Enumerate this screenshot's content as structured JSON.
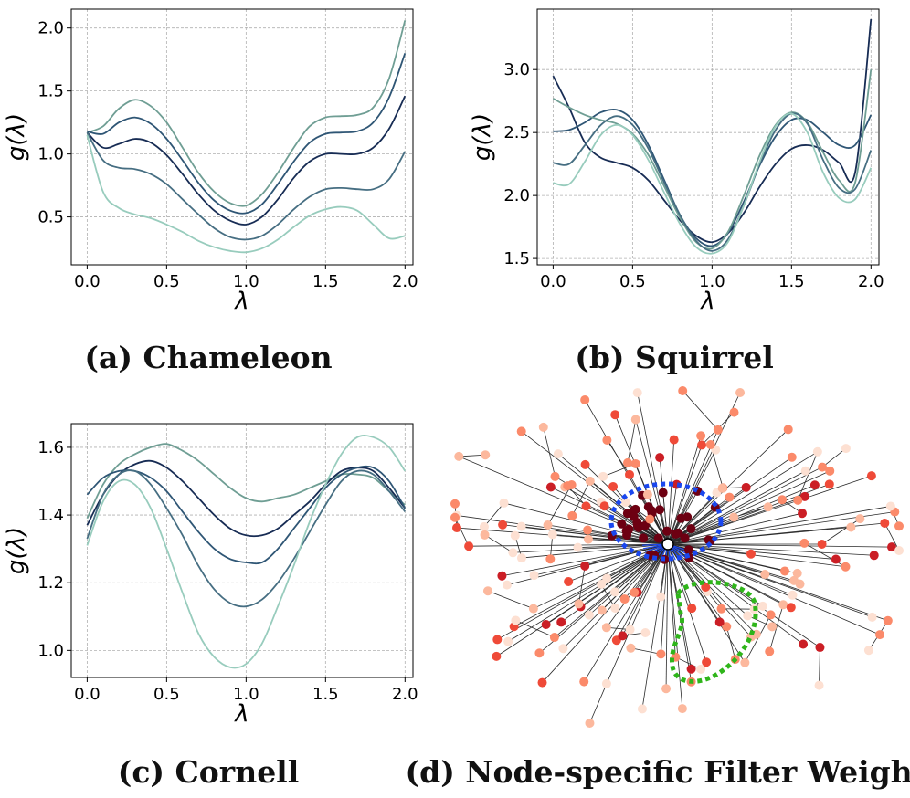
{
  "captions": {
    "a": "(a) Chameleon",
    "b": "(b) Squirrel",
    "c": "(c) Cornell",
    "d": "(d) Node-specific Filter Weights"
  },
  "chart_data": [
    {
      "type": "line",
      "xlabel": "λ",
      "ylabel": "g(λ)",
      "xlim": [
        -0.1,
        2.05
      ],
      "ylim": [
        0.12,
        2.15
      ],
      "xticks": [
        "0.0",
        "0.5",
        "1.0",
        "1.5",
        "2.0"
      ],
      "yticks": [
        "0.5",
        "1.0",
        "1.5",
        "2.0"
      ],
      "grid": true,
      "x": [
        0,
        0.1,
        0.2,
        0.3,
        0.4,
        0.5,
        0.6,
        0.7,
        0.8,
        0.9,
        1.0,
        1.1,
        1.2,
        1.3,
        1.4,
        1.5,
        1.6,
        1.7,
        1.8,
        1.9,
        2.0
      ],
      "series": [
        {
          "color": "#6f9e94",
          "values": [
            1.17,
            1.22,
            1.36,
            1.43,
            1.38,
            1.25,
            1.05,
            0.85,
            0.7,
            0.61,
            0.59,
            0.68,
            0.85,
            1.05,
            1.22,
            1.29,
            1.3,
            1.31,
            1.37,
            1.6,
            2.06
          ]
        },
        {
          "color": "#2f5675",
          "values": [
            1.18,
            1.16,
            1.25,
            1.29,
            1.24,
            1.12,
            0.95,
            0.77,
            0.63,
            0.55,
            0.53,
            0.6,
            0.76,
            0.94,
            1.09,
            1.16,
            1.17,
            1.18,
            1.25,
            1.45,
            1.8
          ]
        },
        {
          "color": "#172c54",
          "values": [
            1.17,
            1.05,
            1.08,
            1.12,
            1.09,
            0.99,
            0.84,
            0.68,
            0.55,
            0.47,
            0.44,
            0.5,
            0.64,
            0.81,
            0.94,
            1.0,
            1.0,
            1.0,
            1.05,
            1.2,
            1.46
          ]
        },
        {
          "color": "#466e82",
          "values": [
            1.17,
            0.95,
            0.89,
            0.88,
            0.84,
            0.76,
            0.64,
            0.52,
            0.41,
            0.34,
            0.32,
            0.35,
            0.44,
            0.56,
            0.66,
            0.72,
            0.73,
            0.72,
            0.72,
            0.8,
            1.02
          ]
        },
        {
          "color": "#98ccbd",
          "values": [
            1.15,
            0.7,
            0.57,
            0.52,
            0.49,
            0.44,
            0.38,
            0.31,
            0.26,
            0.23,
            0.22,
            0.25,
            0.32,
            0.42,
            0.51,
            0.56,
            0.58,
            0.55,
            0.44,
            0.33,
            0.35
          ]
        }
      ]
    },
    {
      "type": "line",
      "xlabel": "λ",
      "ylabel": "g(λ)",
      "xlim": [
        -0.1,
        2.05
      ],
      "ylim": [
        1.45,
        3.48
      ],
      "xticks": [
        "0.0",
        "0.5",
        "1.0",
        "1.5",
        "2.0"
      ],
      "yticks": [
        "1.5",
        "2.0",
        "2.5",
        "3.0"
      ],
      "grid": true,
      "x": [
        0,
        0.1,
        0.2,
        0.3,
        0.4,
        0.5,
        0.6,
        0.7,
        0.8,
        0.9,
        1.0,
        1.1,
        1.2,
        1.3,
        1.4,
        1.5,
        1.6,
        1.7,
        1.8,
        1.9,
        2.0
      ],
      "series": [
        {
          "color": "#172c54",
          "values": [
            2.95,
            2.7,
            2.42,
            2.3,
            2.26,
            2.22,
            2.12,
            1.96,
            1.8,
            1.68,
            1.63,
            1.7,
            1.86,
            2.07,
            2.25,
            2.37,
            2.4,
            2.36,
            2.26,
            2.18,
            3.4
          ]
        },
        {
          "color": "#2f5675",
          "values": [
            2.51,
            2.52,
            2.58,
            2.66,
            2.68,
            2.6,
            2.4,
            2.12,
            1.84,
            1.66,
            1.6,
            1.7,
            1.95,
            2.24,
            2.47,
            2.6,
            2.6,
            2.5,
            2.4,
            2.4,
            2.64
          ]
        },
        {
          "color": "#6f9e94",
          "values": [
            2.77,
            2.7,
            2.64,
            2.6,
            2.57,
            2.49,
            2.32,
            2.07,
            1.82,
            1.63,
            1.58,
            1.71,
            2.0,
            2.32,
            2.56,
            2.66,
            2.58,
            2.34,
            2.12,
            2.1,
            3.0
          ]
        },
        {
          "color": "#466e82",
          "values": [
            2.26,
            2.25,
            2.4,
            2.56,
            2.63,
            2.56,
            2.37,
            2.1,
            1.84,
            1.64,
            1.56,
            1.65,
            1.92,
            2.25,
            2.52,
            2.65,
            2.57,
            2.28,
            2.06,
            2.05,
            2.36
          ]
        },
        {
          "color": "#98ccbd",
          "values": [
            2.1,
            2.09,
            2.27,
            2.48,
            2.56,
            2.48,
            2.28,
            2.02,
            1.77,
            1.59,
            1.54,
            1.63,
            1.92,
            2.27,
            2.55,
            2.65,
            2.5,
            2.18,
            1.98,
            1.97,
            2.22
          ]
        }
      ]
    },
    {
      "type": "line",
      "xlabel": "λ",
      "ylabel": "g(λ)",
      "xlim": [
        -0.1,
        2.05
      ],
      "ylim": [
        0.92,
        1.67
      ],
      "xticks": [
        "0.0",
        "0.5",
        "1.0",
        "1.5",
        "2.0"
      ],
      "yticks": [
        "1.0",
        "1.2",
        "1.4",
        "1.6"
      ],
      "grid": true,
      "x": [
        0,
        0.1,
        0.2,
        0.3,
        0.4,
        0.5,
        0.6,
        0.7,
        0.8,
        0.9,
        1.0,
        1.1,
        1.2,
        1.3,
        1.4,
        1.5,
        1.6,
        1.7,
        1.8,
        1.9,
        2.0
      ],
      "series": [
        {
          "color": "#6f9e94",
          "values": [
            1.39,
            1.49,
            1.55,
            1.58,
            1.6,
            1.61,
            1.59,
            1.56,
            1.52,
            1.48,
            1.45,
            1.44,
            1.45,
            1.46,
            1.48,
            1.5,
            1.52,
            1.52,
            1.51,
            1.47,
            1.43
          ]
        },
        {
          "color": "#172c54",
          "values": [
            1.37,
            1.46,
            1.52,
            1.55,
            1.56,
            1.54,
            1.5,
            1.45,
            1.4,
            1.36,
            1.34,
            1.34,
            1.36,
            1.4,
            1.44,
            1.49,
            1.53,
            1.54,
            1.53,
            1.48,
            1.42
          ]
        },
        {
          "color": "#2f5675",
          "values": [
            1.46,
            1.51,
            1.53,
            1.53,
            1.51,
            1.47,
            1.41,
            1.35,
            1.3,
            1.27,
            1.26,
            1.26,
            1.3,
            1.36,
            1.42,
            1.48,
            1.52,
            1.54,
            1.54,
            1.5,
            1.42
          ]
        },
        {
          "color": "#466e82",
          "values": [
            1.33,
            1.46,
            1.52,
            1.53,
            1.49,
            1.42,
            1.34,
            1.25,
            1.18,
            1.14,
            1.13,
            1.15,
            1.2,
            1.27,
            1.35,
            1.43,
            1.5,
            1.53,
            1.52,
            1.47,
            1.41
          ]
        },
        {
          "color": "#98ccbd",
          "values": [
            1.31,
            1.44,
            1.5,
            1.49,
            1.42,
            1.3,
            1.17,
            1.05,
            0.98,
            0.95,
            0.96,
            1.02,
            1.13,
            1.25,
            1.38,
            1.49,
            1.58,
            1.63,
            1.63,
            1.6,
            1.53
          ]
        }
      ]
    }
  ],
  "network": {
    "weight_palette": [
      "#fde0d2",
      "#fcb89d",
      "#fb8a6a",
      "#ef4a38",
      "#cb1e25",
      "#6d0012"
    ],
    "center_color": "#ffffff",
    "highlight_colors": {
      "blue": "#1a47ee",
      "green": "#2fb51a"
    }
  }
}
